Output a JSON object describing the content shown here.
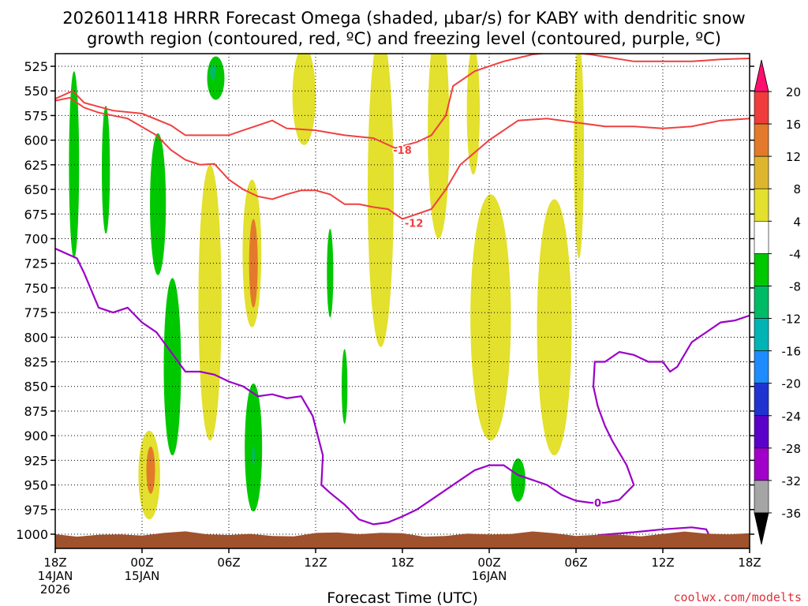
{
  "chart_data": {
    "type": "time-height cross section",
    "title_line1": "2026011418 HRRR Forecast Omega (shaded, µbar/s) for KABY with dendritic snow",
    "title_line2": "growth region (contoured, red, ºC) and freezing level (contoured, purple, ºC)",
    "xlabel": "Forecast Time (UTC)",
    "credit": "coolwx.com/modelts",
    "x_range_hours": [
      0,
      48
    ],
    "y_range_mb": [
      1000,
      525
    ],
    "y_ticks": [
      {
        "p": 525,
        "label": "525"
      },
      {
        "p": 550,
        "label": "550"
      },
      {
        "p": 575,
        "label": "575"
      },
      {
        "p": 600,
        "label": "600"
      },
      {
        "p": 625,
        "label": "625"
      },
      {
        "p": 650,
        "label": "650"
      },
      {
        "p": 675,
        "label": "675"
      },
      {
        "p": 700,
        "label": "700"
      },
      {
        "p": 725,
        "label": "725"
      },
      {
        "p": 750,
        "label": "750"
      },
      {
        "p": 775,
        "label": "775"
      },
      {
        "p": 800,
        "label": "800"
      },
      {
        "p": 825,
        "label": "825"
      },
      {
        "p": 850,
        "label": "850"
      },
      {
        "p": 875,
        "label": "875"
      },
      {
        "p": 900,
        "label": "900"
      },
      {
        "p": 925,
        "label": "925"
      },
      {
        "p": 950,
        "label": "950"
      },
      {
        "p": 975,
        "label": "975"
      },
      {
        "p": 1000,
        "label": "1000"
      }
    ],
    "x_ticks": [
      {
        "h": 0,
        "time": "18Z",
        "date": "14JAN",
        "year": "2026"
      },
      {
        "h": 6,
        "time": "00Z",
        "date": "15JAN",
        "year": ""
      },
      {
        "h": 12,
        "time": "06Z",
        "date": "",
        "year": ""
      },
      {
        "h": 18,
        "time": "12Z",
        "date": "",
        "year": ""
      },
      {
        "h": 24,
        "time": "18Z",
        "date": "",
        "year": ""
      },
      {
        "h": 30,
        "time": "00Z",
        "date": "16JAN",
        "year": ""
      },
      {
        "h": 36,
        "time": "06Z",
        "date": "",
        "year": ""
      },
      {
        "h": 42,
        "time": "12Z",
        "date": "",
        "year": ""
      },
      {
        "h": 48,
        "time": "18Z",
        "date": "",
        "year": ""
      }
    ],
    "colorbar": {
      "labels": [
        "20",
        "16",
        "12",
        "8",
        "4",
        "-4",
        "-8",
        "-12",
        "-16",
        "-20",
        "-24",
        "-28",
        "-32",
        "-36"
      ],
      "colors": [
        "#ff0f6e",
        "#f03c3c",
        "#e37a2b",
        "#deb62e",
        "#e3e02e",
        "#ffffff",
        "#00c800",
        "#00bb66",
        "#00b4b4",
        "#1e8cff",
        "#2033d0",
        "#5a00c8",
        "#a000c8",
        "#a5a5a5",
        "#000000"
      ]
    },
    "omega_regions": [
      {
        "center": [
          1.3,
          625
        ],
        "half_width": 0.35,
        "half_height": 95,
        "level": -6
      },
      {
        "center": [
          3.5,
          630
        ],
        "half_width": 0.28,
        "half_height": 65,
        "level": -6
      },
      {
        "center": [
          7.1,
          665
        ],
        "half_width": 0.55,
        "half_height": 72,
        "level": -6
      },
      {
        "center": [
          11.1,
          537
        ],
        "half_width": 0.6,
        "half_height": 22,
        "level": -6
      },
      {
        "center": [
          10.9,
          531
        ],
        "half_width": 0.2,
        "half_height": 8,
        "level": -12
      },
      {
        "center": [
          8.1,
          830
        ],
        "half_width": 0.6,
        "half_height": 90,
        "level": -6
      },
      {
        "center": [
          13.7,
          912
        ],
        "half_width": 0.6,
        "half_height": 65,
        "level": -6
      },
      {
        "center": [
          13.7,
          920
        ],
        "half_width": 0.1,
        "half_height": 10,
        "level": -12
      },
      {
        "center": [
          19.0,
          735
        ],
        "half_width": 0.22,
        "half_height": 45,
        "level": -6
      },
      {
        "center": [
          20.0,
          850
        ],
        "half_width": 0.2,
        "half_height": 38,
        "level": -6
      },
      {
        "center": [
          32.0,
          945
        ],
        "half_width": 0.5,
        "half_height": 22,
        "level": -6
      },
      {
        "center": [
          6.5,
          940
        ],
        "half_width": 0.75,
        "half_height": 45,
        "level": 6
      },
      {
        "center": [
          6.6,
          935
        ],
        "half_width": 0.3,
        "half_height": 24,
        "level": 10
      },
      {
        "center": [
          10.7,
          765
        ],
        "half_width": 0.8,
        "half_height": 140,
        "level": 6
      },
      {
        "center": [
          13.6,
          715
        ],
        "half_width": 0.65,
        "half_height": 75,
        "level": 6
      },
      {
        "center": [
          13.7,
          725
        ],
        "half_width": 0.3,
        "half_height": 45,
        "level": 10
      },
      {
        "center": [
          17.2,
          555
        ],
        "half_width": 0.8,
        "half_height": 50,
        "level": 6
      },
      {
        "center": [
          22.5,
          650
        ],
        "half_width": 0.9,
        "half_height": 160,
        "level": 6
      },
      {
        "center": [
          26.5,
          590
        ],
        "half_width": 0.75,
        "half_height": 110,
        "level": 6
      },
      {
        "center": [
          28.9,
          570
        ],
        "half_width": 0.45,
        "half_height": 65,
        "level": 6
      },
      {
        "center": [
          30.1,
          780
        ],
        "half_width": 1.4,
        "half_height": 125,
        "level": 6
      },
      {
        "center": [
          34.5,
          790
        ],
        "half_width": 1.2,
        "half_height": 130,
        "level": 6
      },
      {
        "center": [
          36.2,
          610
        ],
        "half_width": 0.35,
        "half_height": 110,
        "level": 6
      }
    ],
    "dgz_contours": [
      {
        "label": "-18",
        "label_at": [
          24.0,
          610
        ],
        "points": [
          [
            0,
            558
          ],
          [
            1.2,
            550
          ],
          [
            2,
            562
          ],
          [
            4,
            570
          ],
          [
            6,
            573
          ],
          [
            8,
            585
          ],
          [
            9,
            595
          ],
          [
            10,
            595
          ],
          [
            12,
            595
          ],
          [
            13,
            590
          ],
          [
            14,
            585
          ],
          [
            15,
            580
          ],
          [
            16,
            588
          ],
          [
            18,
            590
          ],
          [
            20,
            595
          ],
          [
            22,
            598
          ],
          [
            23.5,
            608
          ],
          [
            25,
            602
          ],
          [
            26,
            595
          ],
          [
            27,
            575
          ],
          [
            27.5,
            545
          ],
          [
            29,
            530
          ],
          [
            31,
            520
          ],
          [
            33,
            513
          ],
          [
            35,
            510
          ],
          [
            37,
            513
          ],
          [
            40,
            520
          ],
          [
            42,
            520
          ],
          [
            44,
            520
          ],
          [
            46,
            518
          ],
          [
            48,
            517
          ]
        ]
      },
      {
        "label": "-12",
        "label_at": [
          24.8,
          684
        ],
        "points": [
          [
            0,
            560
          ],
          [
            1,
            557
          ],
          [
            2,
            567
          ],
          [
            3,
            572
          ],
          [
            5,
            578
          ],
          [
            7,
            595
          ],
          [
            8,
            610
          ],
          [
            9,
            620
          ],
          [
            10,
            625
          ],
          [
            11,
            624
          ],
          [
            12,
            640
          ],
          [
            13,
            650
          ],
          [
            14,
            657
          ],
          [
            15,
            660
          ],
          [
            16,
            655
          ],
          [
            17,
            651
          ],
          [
            18,
            651
          ],
          [
            19,
            655
          ],
          [
            20,
            665
          ],
          [
            21,
            665
          ],
          [
            22,
            668
          ],
          [
            23,
            670
          ],
          [
            24,
            680
          ],
          [
            25,
            675
          ],
          [
            26,
            670
          ],
          [
            27,
            650
          ],
          [
            28,
            625
          ],
          [
            30,
            600
          ],
          [
            32,
            580
          ],
          [
            34,
            578
          ],
          [
            36,
            582
          ],
          [
            38,
            586
          ],
          [
            40,
            586
          ],
          [
            42,
            588
          ],
          [
            44,
            586
          ],
          [
            46,
            580
          ],
          [
            48,
            578
          ]
        ]
      }
    ],
    "freezing_contour": {
      "label": "0",
      "label_at": [
        37.5,
        968
      ],
      "points": [
        [
          0,
          710
        ],
        [
          1.5,
          720
        ],
        [
          2,
          735
        ],
        [
          3,
          770
        ],
        [
          4,
          775
        ],
        [
          5,
          770
        ],
        [
          6,
          785
        ],
        [
          7,
          795
        ],
        [
          8,
          815
        ],
        [
          9,
          835
        ],
        [
          10,
          835
        ],
        [
          11,
          838
        ],
        [
          12,
          845
        ],
        [
          13,
          850
        ],
        [
          14,
          860
        ],
        [
          15,
          858
        ],
        [
          16,
          862
        ],
        [
          17,
          860
        ],
        [
          17.8,
          880
        ],
        [
          18.5,
          920
        ],
        [
          18.4,
          950
        ],
        [
          19,
          958
        ],
        [
          20,
          970
        ],
        [
          21,
          985
        ],
        [
          22,
          990
        ],
        [
          23,
          988
        ],
        [
          24,
          982
        ],
        [
          25,
          975
        ],
        [
          26,
          965
        ],
        [
          27,
          955
        ],
        [
          28,
          945
        ],
        [
          29,
          935
        ],
        [
          30,
          930
        ],
        [
          31,
          930
        ],
        [
          32,
          940
        ],
        [
          33,
          945
        ],
        [
          34,
          950
        ],
        [
          35,
          960
        ],
        [
          36,
          966
        ],
        [
          37,
          968
        ],
        [
          38,
          968
        ],
        [
          39,
          965
        ],
        [
          40,
          950
        ],
        [
          39.5,
          930
        ],
        [
          38.5,
          905
        ],
        [
          38,
          890
        ],
        [
          37.5,
          870
        ],
        [
          37.2,
          850
        ],
        [
          37.3,
          825
        ],
        [
          38,
          825
        ],
        [
          39,
          815
        ],
        [
          40,
          818
        ],
        [
          41,
          825
        ],
        [
          42,
          825
        ],
        [
          42.5,
          835
        ],
        [
          43,
          830
        ],
        [
          44,
          805
        ],
        [
          45,
          795
        ],
        [
          46,
          785
        ],
        [
          47,
          783
        ],
        [
          48,
          778
        ]
      ],
      "surface_segment": [
        [
          37.5,
          1001
        ],
        [
          40,
          998
        ],
        [
          42,
          995
        ],
        [
          44,
          993
        ],
        [
          45,
          995
        ],
        [
          45.2,
          1001
        ]
      ]
    },
    "terrain": {
      "top_mb_range": [
        997,
        1003
      ],
      "color": "#a0522d"
    }
  }
}
